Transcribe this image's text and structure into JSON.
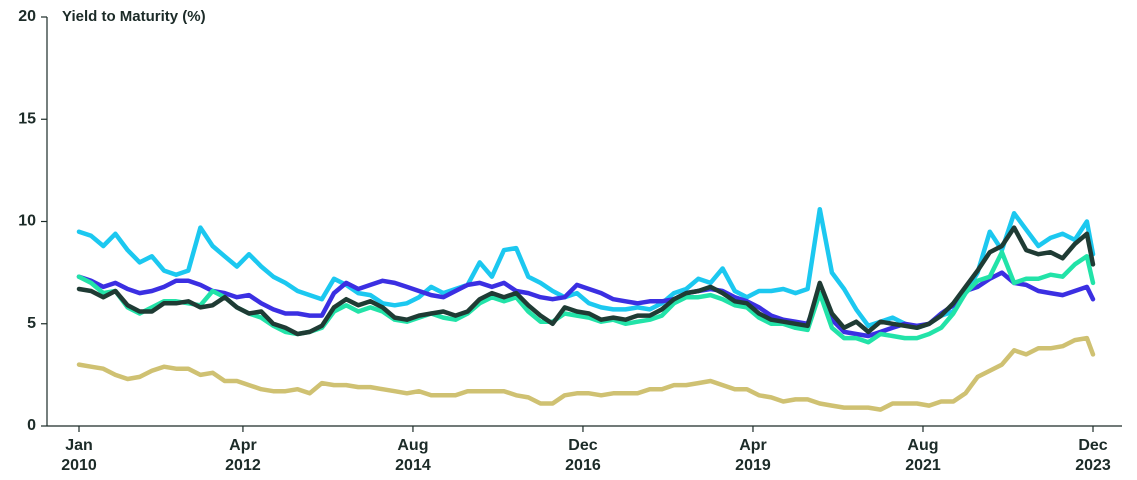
{
  "chart_data": {
    "type": "line",
    "title": "Yield to Maturity (%)",
    "x": [
      "2010-01",
      "2010-03",
      "2010-05",
      "2010-07",
      "2010-09",
      "2010-11",
      "2011-01",
      "2011-03",
      "2011-05",
      "2011-07",
      "2011-09",
      "2011-11",
      "2012-01",
      "2012-03",
      "2012-05",
      "2012-07",
      "2012-09",
      "2012-11",
      "2013-01",
      "2013-03",
      "2013-05",
      "2013-07",
      "2013-09",
      "2013-11",
      "2014-01",
      "2014-03",
      "2014-05",
      "2014-07",
      "2014-09",
      "2014-11",
      "2015-01",
      "2015-03",
      "2015-05",
      "2015-07",
      "2015-09",
      "2015-11",
      "2016-01",
      "2016-03",
      "2016-05",
      "2016-07",
      "2016-09",
      "2016-11",
      "2017-01",
      "2017-03",
      "2017-05",
      "2017-07",
      "2017-09",
      "2017-11",
      "2018-01",
      "2018-03",
      "2018-05",
      "2018-07",
      "2018-09",
      "2018-11",
      "2019-01",
      "2019-03",
      "2019-05",
      "2019-07",
      "2019-09",
      "2019-11",
      "2020-01",
      "2020-03",
      "2020-05",
      "2020-07",
      "2020-09",
      "2020-11",
      "2021-01",
      "2021-03",
      "2021-05",
      "2021-07",
      "2021-09",
      "2021-11",
      "2022-01",
      "2022-03",
      "2022-05",
      "2022-07",
      "2022-09",
      "2022-11",
      "2023-01",
      "2023-03",
      "2023-05",
      "2023-07",
      "2023-09",
      "2023-11",
      "2023-12"
    ],
    "series": [
      {
        "color": "#1cc8f0",
        "values": [
          9.5,
          9.3,
          8.8,
          9.4,
          8.6,
          8.0,
          8.3,
          7.6,
          7.4,
          7.6,
          9.7,
          8.8,
          8.3,
          7.8,
          8.4,
          7.8,
          7.3,
          7.0,
          6.6,
          6.4,
          6.2,
          7.2,
          6.9,
          6.5,
          6.4,
          6.0,
          5.9,
          6.0,
          6.3,
          6.8,
          6.5,
          6.7,
          6.9,
          8.0,
          7.3,
          8.6,
          8.7,
          7.3,
          7.0,
          6.6,
          6.3,
          6.5,
          6.0,
          5.8,
          5.7,
          5.7,
          5.8,
          5.7,
          6.0,
          6.5,
          6.7,
          7.2,
          7.0,
          7.7,
          6.6,
          6.3,
          6.6,
          6.6,
          6.7,
          6.5,
          6.7,
          10.6,
          7.5,
          6.7,
          5.7,
          4.9,
          5.1,
          5.3,
          5.0,
          4.8,
          5.0,
          5.4,
          5.6,
          6.5,
          7.5,
          9.5,
          8.6,
          10.4,
          9.6,
          8.8,
          9.2,
          9.4,
          9.1,
          10.0,
          8.4
        ]
      },
      {
        "color": "#3b2fe2",
        "values": [
          7.3,
          7.1,
          6.8,
          7.0,
          6.7,
          6.5,
          6.6,
          6.8,
          7.1,
          7.1,
          6.9,
          6.6,
          6.5,
          6.3,
          6.4,
          6.0,
          5.7,
          5.5,
          5.5,
          5.4,
          5.4,
          6.5,
          7.0,
          6.7,
          6.9,
          7.1,
          7.0,
          6.8,
          6.6,
          6.4,
          6.3,
          6.6,
          6.9,
          7.0,
          6.8,
          7.0,
          6.6,
          6.5,
          6.3,
          6.2,
          6.3,
          6.9,
          6.7,
          6.5,
          6.2,
          6.1,
          6.0,
          6.1,
          6.1,
          6.2,
          6.5,
          6.6,
          6.7,
          6.6,
          6.3,
          6.1,
          5.8,
          5.4,
          5.2,
          5.1,
          5.0,
          6.5,
          5.2,
          4.6,
          4.5,
          4.4,
          4.6,
          4.8,
          5.0,
          4.9,
          5.0,
          5.5,
          5.9,
          6.6,
          6.8,
          7.2,
          7.5,
          7.0,
          6.9,
          6.6,
          6.5,
          6.4,
          6.6,
          6.8,
          6.2
        ]
      },
      {
        "color": "#22e3a8",
        "values": [
          7.3,
          7.0,
          6.5,
          6.6,
          5.8,
          5.5,
          5.8,
          6.1,
          6.1,
          6.0,
          5.9,
          6.6,
          6.3,
          5.8,
          5.5,
          5.3,
          4.9,
          4.6,
          4.5,
          4.6,
          4.8,
          5.6,
          5.9,
          5.6,
          5.8,
          5.6,
          5.2,
          5.1,
          5.3,
          5.5,
          5.3,
          5.2,
          5.5,
          6.0,
          6.3,
          6.1,
          6.3,
          5.6,
          5.1,
          5.1,
          5.5,
          5.4,
          5.3,
          5.1,
          5.2,
          5.0,
          5.1,
          5.2,
          5.4,
          6.0,
          6.3,
          6.3,
          6.4,
          6.2,
          5.9,
          5.8,
          5.3,
          5.0,
          5.0,
          4.8,
          4.7,
          6.5,
          4.8,
          4.3,
          4.3,
          4.1,
          4.5,
          4.4,
          4.3,
          4.3,
          4.5,
          4.8,
          5.5,
          6.5,
          7.1,
          7.3,
          8.5,
          7.0,
          7.2,
          7.2,
          7.4,
          7.3,
          7.9,
          8.3,
          7.0
        ]
      },
      {
        "color": "#1f3b34",
        "values": [
          6.7,
          6.6,
          6.3,
          6.6,
          5.9,
          5.6,
          5.6,
          6.0,
          6.0,
          6.1,
          5.8,
          5.9,
          6.3,
          5.8,
          5.5,
          5.6,
          5.0,
          4.8,
          4.5,
          4.6,
          4.9,
          5.8,
          6.2,
          5.9,
          6.1,
          5.8,
          5.3,
          5.2,
          5.4,
          5.5,
          5.6,
          5.4,
          5.6,
          6.2,
          6.5,
          6.3,
          6.5,
          5.9,
          5.4,
          5.0,
          5.8,
          5.6,
          5.5,
          5.2,
          5.3,
          5.2,
          5.4,
          5.4,
          5.7,
          6.2,
          6.5,
          6.6,
          6.8,
          6.5,
          6.1,
          6.0,
          5.5,
          5.2,
          5.1,
          5.0,
          4.9,
          7.0,
          5.5,
          4.8,
          5.1,
          4.6,
          5.1,
          5.0,
          4.9,
          4.8,
          5.0,
          5.4,
          6.0,
          6.8,
          7.6,
          8.5,
          8.8,
          9.7,
          8.6,
          8.4,
          8.5,
          8.2,
          8.9,
          9.4,
          7.9
        ]
      },
      {
        "color": "#cfc172",
        "values": [
          3.0,
          2.9,
          2.8,
          2.5,
          2.3,
          2.4,
          2.7,
          2.9,
          2.8,
          2.8,
          2.5,
          2.6,
          2.2,
          2.2,
          2.0,
          1.8,
          1.7,
          1.7,
          1.8,
          1.6,
          2.1,
          2.0,
          2.0,
          1.9,
          1.9,
          1.8,
          1.7,
          1.6,
          1.7,
          1.5,
          1.5,
          1.5,
          1.7,
          1.7,
          1.7,
          1.7,
          1.5,
          1.4,
          1.1,
          1.1,
          1.5,
          1.6,
          1.6,
          1.5,
          1.6,
          1.6,
          1.6,
          1.8,
          1.8,
          2.0,
          2.0,
          2.1,
          2.2,
          2.0,
          1.8,
          1.8,
          1.5,
          1.4,
          1.2,
          1.3,
          1.3,
          1.1,
          1.0,
          0.9,
          0.9,
          0.9,
          0.8,
          1.1,
          1.1,
          1.1,
          1.0,
          1.2,
          1.2,
          1.6,
          2.4,
          2.7,
          3.0,
          3.7,
          3.5,
          3.8,
          3.8,
          3.9,
          4.2,
          4.3,
          3.5
        ]
      }
    ],
    "xlim": [
      "2010-01",
      "2023-12"
    ],
    "xticks": [
      {
        "value": "2010-01",
        "label": "Jan 2010"
      },
      {
        "value": "2012-04",
        "label": "Apr 2012"
      },
      {
        "value": "2014-08",
        "label": "Aug 2014"
      },
      {
        "value": "2016-12",
        "label": "Dec 2016"
      },
      {
        "value": "2019-04",
        "label": "Apr 2019"
      },
      {
        "value": "2021-08",
        "label": "Aug 2021"
      },
      {
        "value": "2023-12",
        "label": "Dec 2023"
      }
    ],
    "ylim": [
      0,
      20
    ],
    "yticks": [
      0,
      5,
      10,
      15,
      20
    ],
    "grid": false
  }
}
